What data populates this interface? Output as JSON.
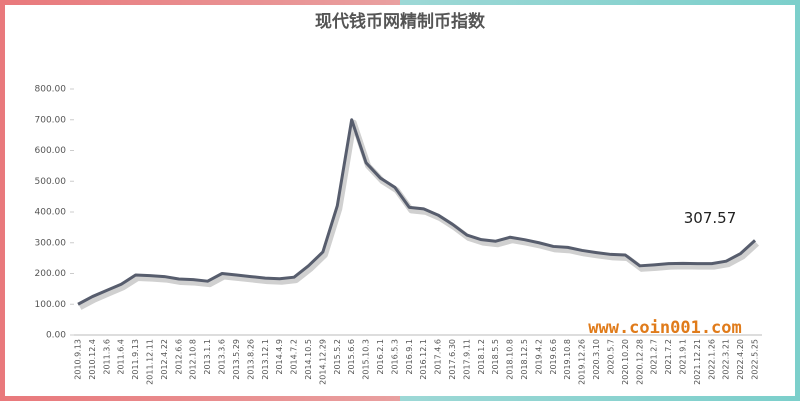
{
  "chart_data": {
    "type": "line",
    "title": "现代钱币网精制币指数",
    "categories": [
      "2010.9.13",
      "2010.12.4",
      "2011.3.6",
      "2011.6.4",
      "2011.9.13",
      "2011.12.11",
      "2012.4.22",
      "2012.6.6",
      "2012.10.8",
      "2013.1.1",
      "2013.3.6",
      "2013.5.29",
      "2013.8.26",
      "2013.12.1",
      "2014.4.9",
      "2014.7.2",
      "2014.10.5",
      "2014.12.29",
      "2015.5.2",
      "2015.6.6",
      "2015.10.3",
      "2016.2.1",
      "2016.5.3",
      "2016.9.1",
      "2016.12.1",
      "2017.4.6",
      "2017.6.30",
      "2017.9.11",
      "2018.1.2",
      "2018.5.5",
      "2018.10.8",
      "2018.12.5",
      "2019.4.2",
      "2019.6.6",
      "2019.10.8",
      "2019.12.26",
      "2020.3.10",
      "2020.5.7",
      "2020.10.20",
      "2020.12.28",
      "2021.2.7",
      "2021.7.2",
      "2021.9.1",
      "2021.12.21",
      "2022.1.26",
      "2022.3.21",
      "2022.4.20",
      "2022.5.25"
    ],
    "series": [
      {
        "name": "现代钱币网精制币指数",
        "color": "#575d6d",
        "values": [
          100,
          125,
          145,
          165,
          195,
          193,
          190,
          182,
          180,
          175,
          200,
          195,
          190,
          185,
          183,
          188,
          225,
          270,
          420,
          700,
          560,
          510,
          480,
          415,
          410,
          390,
          360,
          325,
          310,
          305,
          318,
          310,
          300,
          288,
          285,
          275,
          268,
          262,
          260,
          225,
          228,
          232,
          233,
          232,
          232,
          240,
          265,
          307.57
        ]
      }
    ],
    "ylim": [
      0,
      800
    ],
    "yticks": [
      {
        "value": 0,
        "label": "0.00"
      },
      {
        "value": 100,
        "label": "100.00"
      },
      {
        "value": 200,
        "label": "200.00"
      },
      {
        "value": 300,
        "label": "300.00"
      },
      {
        "value": 400,
        "label": "400.00"
      },
      {
        "value": 500,
        "label": "500.00"
      },
      {
        "value": 600,
        "label": "600.00"
      },
      {
        "value": 700,
        "label": "700.00"
      },
      {
        "value": 800,
        "label": "800.00"
      }
    ],
    "annotation": "307.57",
    "watermark": "www.coin001.com"
  }
}
